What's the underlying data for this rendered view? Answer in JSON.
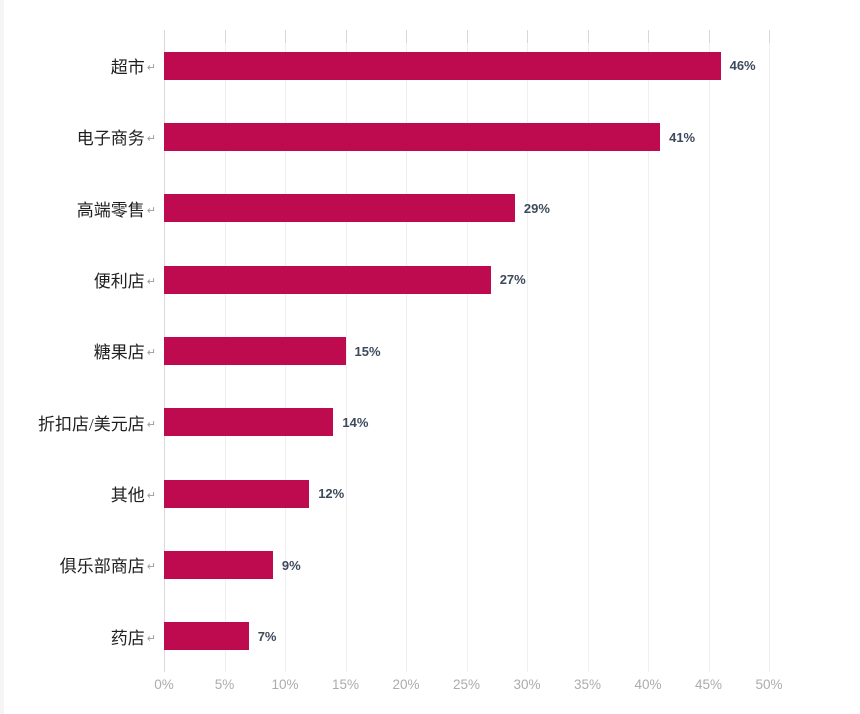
{
  "chart_data": {
    "type": "bar",
    "orientation": "horizontal",
    "title": "",
    "categories": [
      "超市",
      "电子商务",
      "高端零售",
      "便利店",
      "糖果店",
      "折扣店/美元店",
      "其他",
      "俱乐部商店",
      "药店"
    ],
    "values": [
      46,
      41,
      29,
      27,
      15,
      14,
      12,
      9,
      7
    ],
    "value_labels": [
      "46%",
      "41%",
      "29%",
      "27%",
      "15%",
      "14%",
      "12%",
      "9%",
      "7%"
    ],
    "x_ticks": [
      "0%",
      "5%",
      "10%",
      "15%",
      "20%",
      "25%",
      "30%",
      "35%",
      "40%",
      "45%",
      "50%"
    ],
    "xlim": [
      0,
      50
    ],
    "grid": "vertical-light",
    "legend": "none",
    "paragraph_mark": "↵",
    "colors": {
      "bar": "#be0a4f",
      "value_label": "#3d4a5c",
      "category_label": "#1f1f1f",
      "tick_label": "#acacac",
      "gridline": "#efefef",
      "axis_line": "#d9d9d9"
    }
  }
}
